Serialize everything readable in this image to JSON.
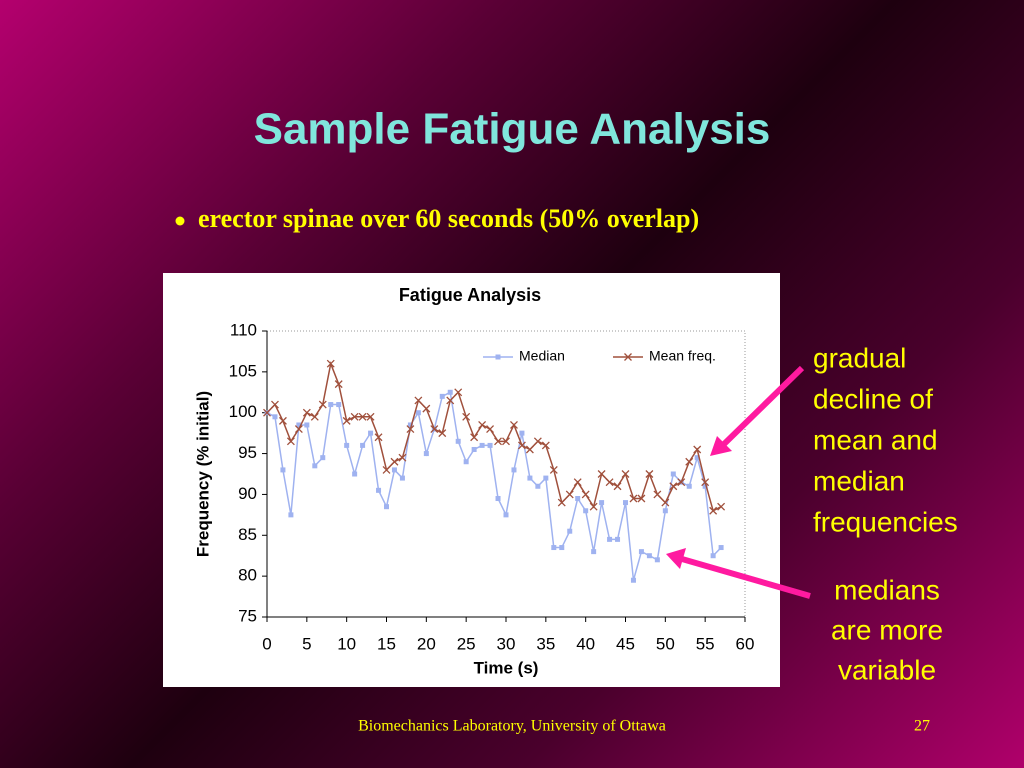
{
  "slide": {
    "title": "Sample Fatigue Analysis",
    "bullet": "erector spinae over 60 seconds (50% overlap)",
    "annotation_1": [
      "gradual",
      "decline of",
      "mean and",
      "median",
      "frequencies"
    ],
    "annotation_2": [
      "medians",
      "are more",
      "variable"
    ],
    "footer": "Biomechanics Laboratory, University of Ottawa",
    "page_number": 27
  },
  "chart_data": {
    "type": "line",
    "title": "Fatigue Analysis",
    "x_label": "Time (s)",
    "y_label": "Frequency (% initial)",
    "x": [
      0,
      1,
      2,
      3,
      4,
      5,
      6,
      7,
      8,
      9,
      10,
      11,
      12,
      13,
      14,
      15,
      16,
      17,
      18,
      19,
      20,
      21,
      22,
      23,
      24,
      25,
      26,
      27,
      28,
      29,
      30,
      31,
      32,
      33,
      34,
      35,
      36,
      37,
      38,
      39,
      40,
      41,
      42,
      43,
      44,
      45,
      46,
      47,
      48,
      49,
      50,
      51,
      52,
      53,
      54,
      55,
      56,
      57
    ],
    "series": [
      {
        "name": "Median",
        "color": "#9fb2f0",
        "marker": "square",
        "values": [
          100,
          99.5,
          93,
          87.5,
          98.5,
          98.5,
          93.5,
          94.5,
          101,
          101,
          96,
          92.5,
          96,
          97.5,
          90.5,
          88.5,
          93,
          92,
          98.5,
          100,
          95,
          98,
          102,
          102.5,
          96.5,
          94,
          95.5,
          96,
          96,
          89.5,
          87.5,
          93,
          97.5,
          92,
          91,
          92,
          83.5,
          83.5,
          85.5,
          89.5,
          88,
          83,
          89,
          84.5,
          84.5,
          89,
          79.5,
          83,
          82.5,
          82,
          88,
          92.5,
          91.5,
          91,
          94.5,
          91,
          82.5,
          83.5
        ]
      },
      {
        "name": "Mean freq.",
        "color": "#a0503c",
        "marker": "x",
        "values": [
          100,
          101,
          99,
          96.5,
          98,
          100,
          99.5,
          101,
          106,
          103.5,
          99,
          99.5,
          99.5,
          99.5,
          97,
          93,
          94,
          94.5,
          98,
          101.5,
          100.5,
          98,
          97.5,
          101.5,
          102.5,
          99.5,
          97,
          98.5,
          98,
          96.5,
          96.5,
          98.5,
          96,
          95.5,
          96.5,
          96,
          93,
          89,
          90,
          91.5,
          90,
          88.5,
          92.5,
          91.5,
          91,
          92.5,
          89.5,
          89.5,
          92.5,
          90,
          89,
          91,
          91.5,
          94,
          95.5,
          91.5,
          88,
          88.5
        ]
      }
    ],
    "xlim": [
      0,
      60
    ],
    "xticks": [
      0,
      5,
      10,
      15,
      20,
      25,
      30,
      35,
      40,
      45,
      50,
      55,
      60
    ],
    "ylim": [
      75,
      110
    ],
    "yticks": [
      75,
      80,
      85,
      90,
      95,
      100,
      105,
      110
    ]
  }
}
